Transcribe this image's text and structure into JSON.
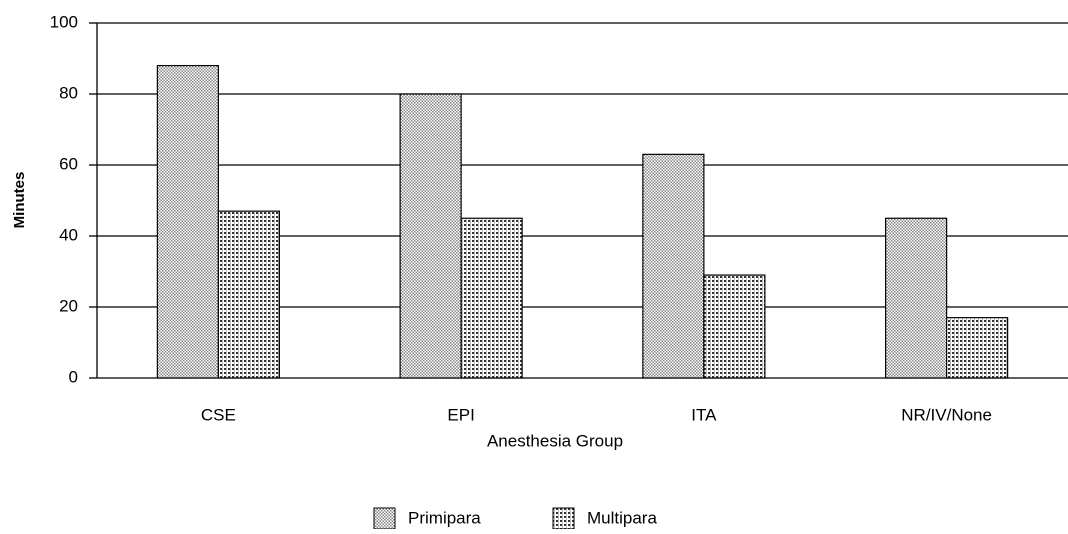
{
  "chart_data": {
    "type": "bar",
    "categories": [
      "CSE",
      "EPI",
      "ITA",
      "NR/IV/None"
    ],
    "series": [
      {
        "name": "Primipara",
        "color": "#8a8a8a",
        "values": [
          88,
          80,
          63,
          45
        ]
      },
      {
        "name": "Multipara",
        "color": "#333333",
        "values": [
          47,
          45,
          29,
          17
        ]
      }
    ],
    "xlabel": "Anesthesia Group",
    "ylabel": "Minutes",
    "ylim": [
      0,
      100
    ],
    "yticks": [
      0,
      20,
      40,
      60,
      80,
      100
    ],
    "grid": true,
    "legend": "bottom"
  }
}
